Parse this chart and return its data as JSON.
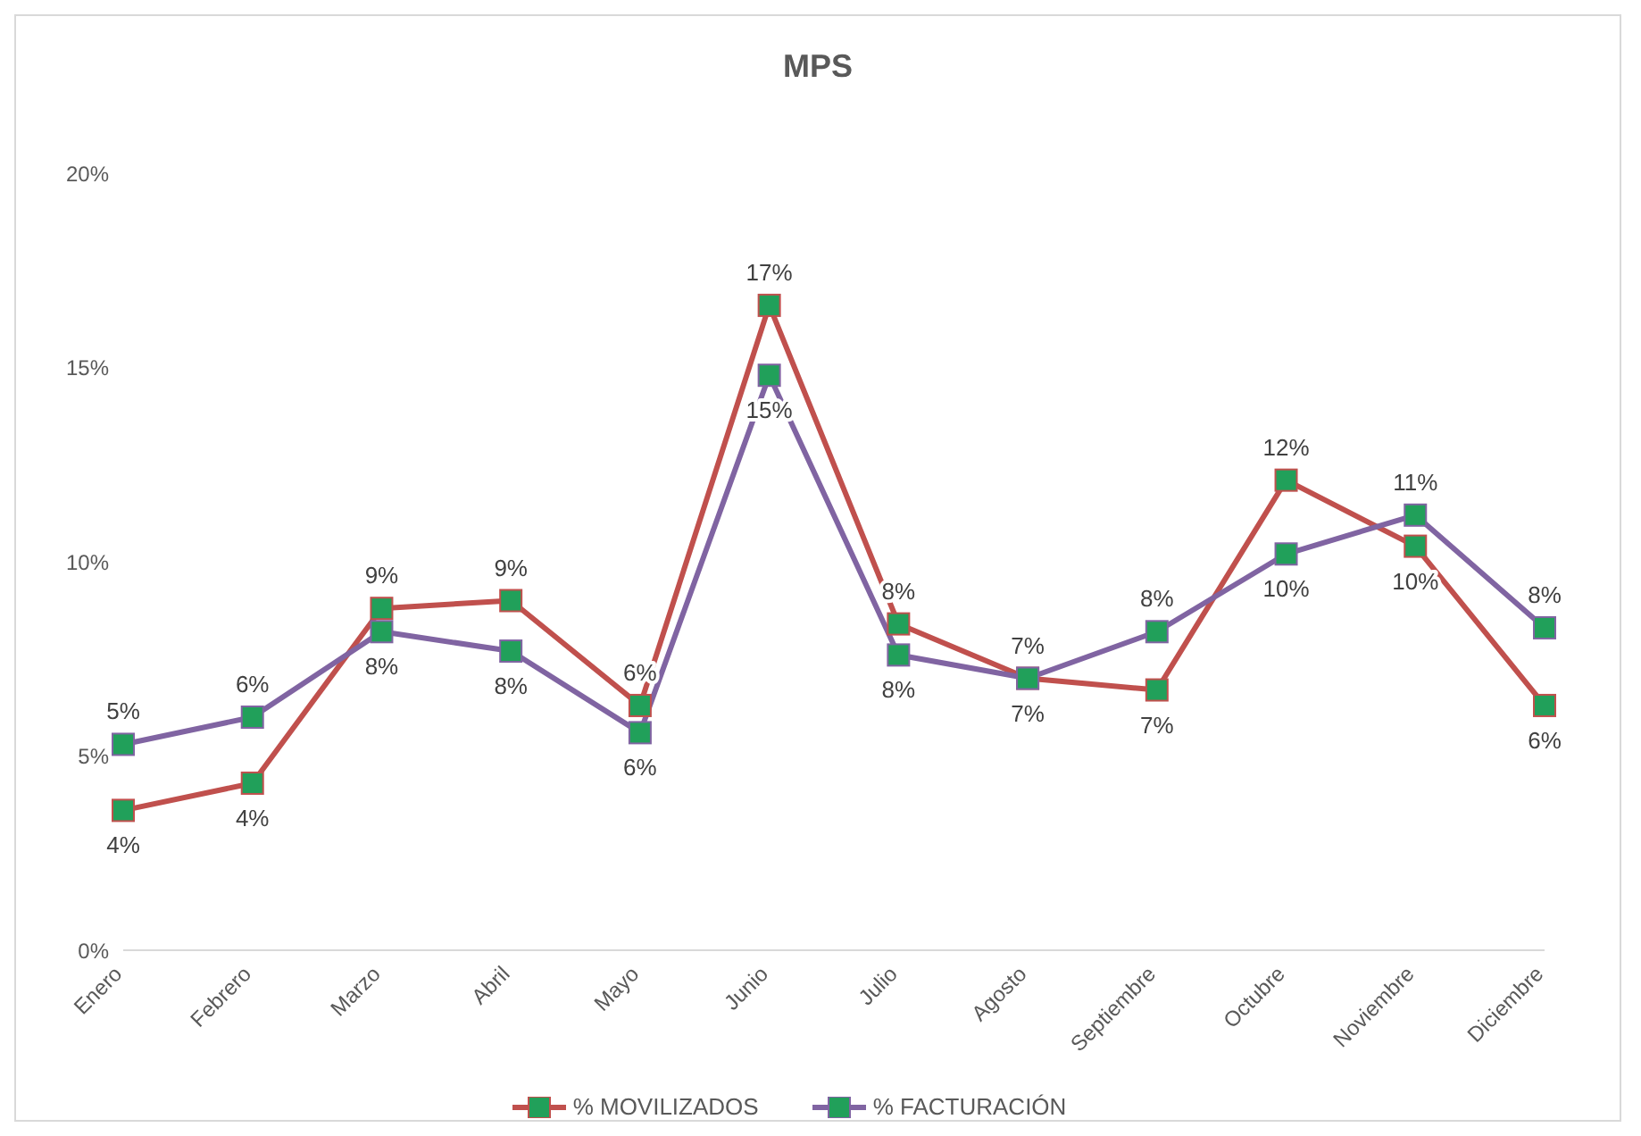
{
  "chart_data": {
    "type": "line",
    "title": "MPS",
    "categories": [
      "Enero",
      "Febrero",
      "Marzo",
      "Abril",
      "Mayo",
      "Junio",
      "Julio",
      "Agosto",
      "Septiembre",
      "Octubre",
      "Noviembre",
      "Diciembre"
    ],
    "series": [
      {
        "name": "% MOVILIZADOS",
        "color": "#c0504d",
        "values": [
          3.6,
          4.3,
          8.8,
          9.0,
          6.3,
          16.6,
          8.4,
          7.0,
          6.7,
          12.1,
          10.4,
          6.3
        ],
        "value_labels": [
          "4%",
          "4%",
          "9%",
          "9%",
          "6%",
          "17%",
          "8%",
          "7%",
          "7%",
          "12%",
          "10%",
          "6%"
        ]
      },
      {
        "name": "% FACTURACIÓN",
        "color": "#8064a2",
        "values": [
          5.3,
          6.0,
          8.2,
          7.7,
          5.6,
          14.8,
          7.6,
          7.0,
          8.2,
          10.2,
          11.2,
          8.3
        ],
        "value_labels": [
          "5%",
          "6%",
          "8%",
          "8%",
          "6%",
          "15%",
          "8%",
          "7%",
          "8%",
          "10%",
          "11%",
          "8%"
        ]
      }
    ],
    "ylim": [
      0,
      20
    ],
    "yticks": [
      {
        "value": 0,
        "label": "0%"
      },
      {
        "value": 5,
        "label": "5%"
      },
      {
        "value": 10,
        "label": "10%"
      },
      {
        "value": 15,
        "label": "15%"
      },
      {
        "value": 20,
        "label": "20%"
      }
    ],
    "grid": false,
    "legend": "bottom",
    "marker": "square",
    "line_style": "solid"
  }
}
